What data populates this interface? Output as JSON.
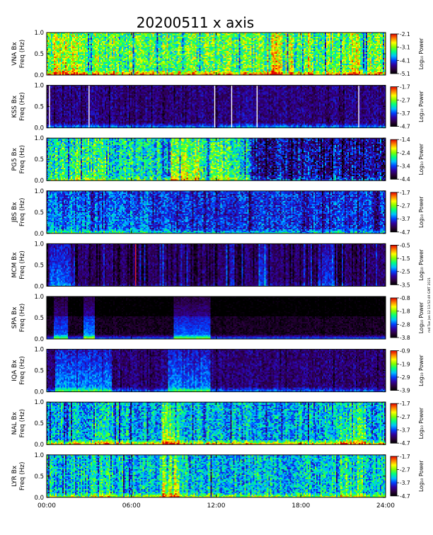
{
  "chart_data": {
    "type": "heatmap",
    "title": "20200511 x axis",
    "xlabel": "",
    "x_ticks": [
      "00:00",
      "06:00",
      "12:00",
      "18:00",
      "24:00"
    ],
    "xlim_hours": [
      0,
      24
    ],
    "ylim_hz": [
      0.0,
      1.0
    ],
    "y_ticks": [
      "0.0",
      "0.5",
      "1.0"
    ],
    "colorbar_label": "Log₁₀ Power",
    "colormap": [
      "#000000",
      "#2b0040",
      "#3000a0",
      "#0040ff",
      "#00c0ff",
      "#00ff80",
      "#80ff00",
      "#ffff00",
      "#ff8000",
      "#e00000"
    ],
    "stamp": "md Tue Jan 12 13:52:49 GMT 2021",
    "panels": [
      {
        "name": "VNA Bx",
        "ylabel": "Freq (Hz)",
        "colorbar_ticks": [
          "-2.1",
          "-3.1",
          "-4.1",
          "-5.1"
        ],
        "cmin": -5.1,
        "cmax": -2.1,
        "mean": 0.62,
        "noise": 0.34,
        "low_band": 0.25,
        "events": [
          [
            0.5,
            1.5,
            0.12
          ],
          [
            1.6,
            2.2,
            0.1
          ],
          [
            3.2,
            3.8,
            0.08
          ],
          [
            15.6,
            16.6,
            0.14
          ],
          [
            17.2,
            17.6,
            0.1
          ],
          [
            18.2,
            18.8,
            0.12
          ],
          [
            21.5,
            22.2,
            0.08
          ]
        ],
        "gaps": []
      },
      {
        "name": "KSS Bx",
        "ylabel": "Freq (Hz)",
        "colorbar_ticks": [
          "-1.7",
          "-2.7",
          "-3.7",
          "-4.7"
        ],
        "cmin": -4.7,
        "cmax": -1.7,
        "mean": 0.18,
        "noise": 0.18,
        "low_band": 0.22,
        "events": [
          [
            13.4,
            14.6,
            0.06
          ]
        ],
        "gaps": [
          0.2,
          3.0,
          11.9,
          13.1,
          14.9,
          22.1
        ]
      },
      {
        "name": "PG5 Bx",
        "ylabel": "Freq (Hz)",
        "colorbar_ticks": [
          "-1.4",
          "-2.4",
          "-3.4",
          "-4.4"
        ],
        "cmin": -4.4,
        "cmax": -1.4,
        "mean": 0.5,
        "noise": 0.34,
        "low_band": 0.12,
        "events": [
          [
            0.0,
            4.2,
            0.08
          ],
          [
            8.8,
            10.8,
            0.22
          ],
          [
            11.6,
            13.6,
            0.08
          ]
        ],
        "late_dark_from": 14.5,
        "gaps": []
      },
      {
        "name": "JBS Bx",
        "ylabel": "Freq (Hz)",
        "colorbar_ticks": [
          "-1.7",
          "-2.7",
          "-3.7",
          "-4.7"
        ],
        "cmin": -4.7,
        "cmax": -1.7,
        "mean": 0.3,
        "noise": 0.26,
        "low_band": 0.18,
        "events": [
          [
            0.0,
            7.2,
            0.1
          ],
          [
            8.2,
            8.8,
            0.08
          ]
        ],
        "gaps": []
      },
      {
        "name": "MCM Bx",
        "ylabel": "Freq (Hz)",
        "colorbar_ticks": [
          "-0.5",
          "-1.5",
          "-2.5",
          "-3.5"
        ],
        "cmin": -3.5,
        "cmax": -0.5,
        "mean": 0.16,
        "noise": 0.16,
        "low_band": 0.05,
        "streaky": true,
        "red_line": 6.3,
        "events": [
          [
            0.2,
            2.0,
            0.2
          ],
          [
            14.8,
            15.6,
            0.12
          ],
          [
            19.2,
            20.4,
            0.14
          ]
        ],
        "gaps": []
      },
      {
        "name": "SPA Bx",
        "ylabel": "Freq (Hz)",
        "colorbar_ticks": [
          "-0.8",
          "-1.8",
          "-2.8",
          "-3.8"
        ],
        "cmin": -3.8,
        "cmax": -0.8,
        "mean": 0.06,
        "noise": 0.1,
        "low_band": 0.28,
        "dark_upper_from": 0.55,
        "events": [
          [
            0.5,
            1.5,
            0.3
          ],
          [
            2.6,
            3.4,
            0.35
          ],
          [
            9.0,
            11.6,
            0.3
          ]
        ],
        "gaps": []
      },
      {
        "name": "IQA Bx",
        "ylabel": "Freq (Hz)",
        "colorbar_ticks": [
          "-0.9",
          "-1.9",
          "-2.9",
          "-3.9"
        ],
        "cmin": -3.9,
        "cmax": -0.9,
        "mean": 0.17,
        "noise": 0.18,
        "low_band": 0.2,
        "events": [
          [
            0.6,
            4.6,
            0.24
          ],
          [
            8.6,
            11.6,
            0.24
          ]
        ],
        "gaps": []
      },
      {
        "name": "NAL Bx",
        "ylabel": "Freq (Hz)",
        "colorbar_ticks": [
          "-1.7",
          "-2.7",
          "-3.7",
          "-4.7"
        ],
        "cmin": -4.7,
        "cmax": -1.7,
        "mean": 0.44,
        "noise": 0.3,
        "low_band": 0.36,
        "events": [
          [
            3.2,
            4.4,
            0.12
          ],
          [
            8.2,
            9.4,
            0.26
          ],
          [
            20.8,
            22.6,
            0.14
          ]
        ],
        "gaps": []
      },
      {
        "name": "LYR Bx",
        "ylabel": "Freq (Hz)",
        "colorbar_ticks": [
          "-1.7",
          "-2.7",
          "-3.7",
          "-4.7"
        ],
        "cmin": -4.7,
        "cmax": -1.7,
        "mean": 0.46,
        "noise": 0.3,
        "low_band": 0.24,
        "events": [
          [
            3.2,
            4.6,
            0.12
          ],
          [
            8.2,
            9.4,
            0.28
          ],
          [
            20.8,
            22.4,
            0.14
          ]
        ],
        "gaps": []
      }
    ]
  }
}
